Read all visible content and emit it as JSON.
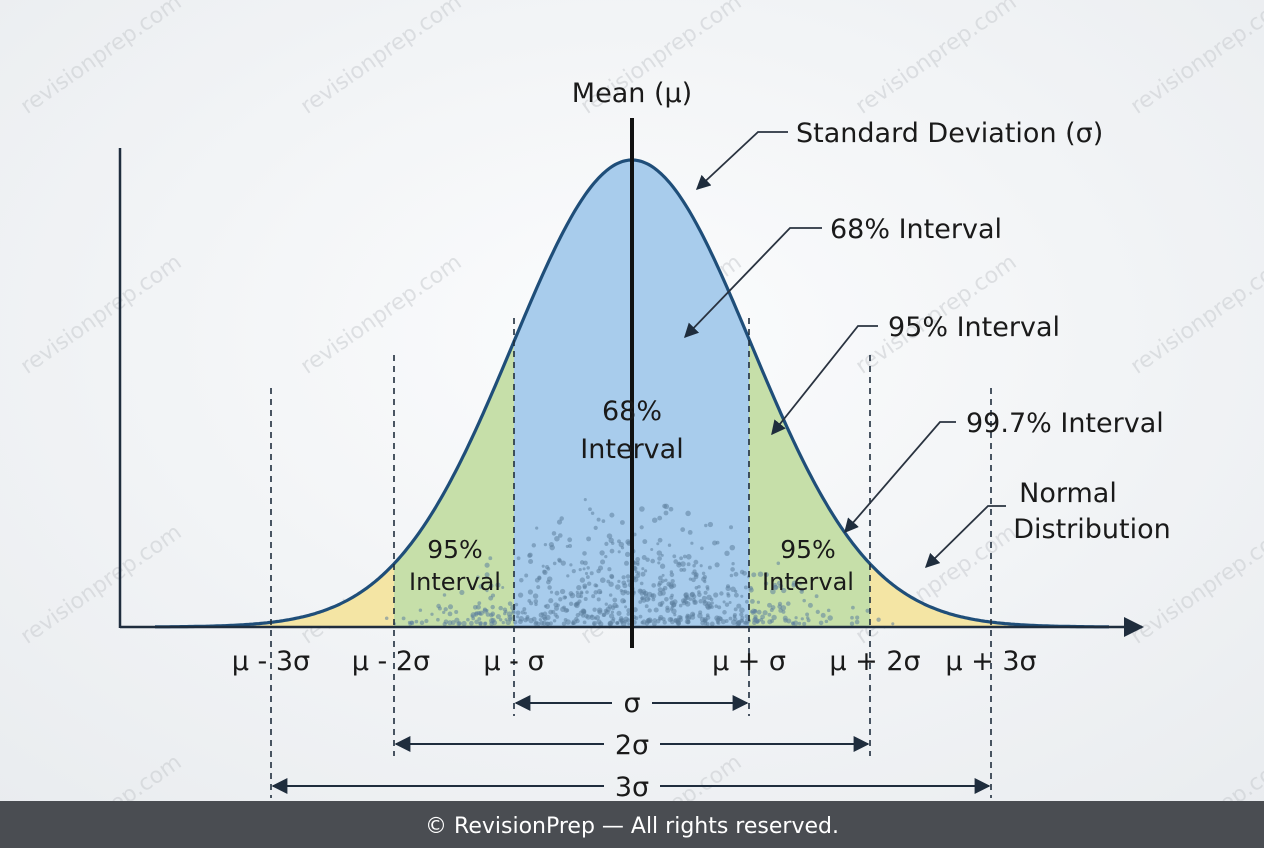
{
  "mean_label": "Mean (μ)",
  "callouts": [
    [
      "Standard Deviation (σ)"
    ],
    [
      "68% Interval"
    ],
    [
      "95% Interval"
    ],
    [
      "99.7% Interval"
    ],
    [
      "Normal",
      "Distribution"
    ]
  ],
  "regions": {
    "center": [
      "68%",
      "Interval"
    ],
    "left": [
      "95%",
      "Interval"
    ],
    "right": [
      "95%",
      "Interval"
    ]
  },
  "axis_labels": [
    "μ - 3σ",
    "μ - 2σ",
    "μ - σ",
    "μ + σ",
    "μ + 2σ",
    "μ + 3σ"
  ],
  "spans": [
    "σ",
    "2σ",
    "3σ"
  ],
  "footer": "© RevisionPrep — All rights reserved.",
  "watermark": "revisionprep.com"
}
